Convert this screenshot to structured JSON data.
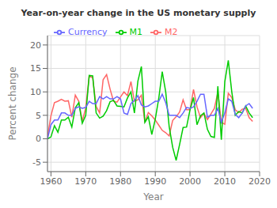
{
  "chart_data": {
    "type": "line",
    "title": "Year-on-year change in the US monetary supply",
    "xlabel": "Year",
    "ylabel": "Percent change",
    "x": [
      1959,
      1960,
      1961,
      1962,
      1963,
      1964,
      1965,
      1966,
      1967,
      1968,
      1969,
      1970,
      1971,
      1972,
      1973,
      1974,
      1975,
      1976,
      1977,
      1978,
      1979,
      1980,
      1981,
      1982,
      1983,
      1984,
      1985,
      1986,
      1987,
      1988,
      1989,
      1990,
      1991,
      1992,
      1993,
      1994,
      1995,
      1996,
      1997,
      1998,
      1999,
      2000,
      2001,
      2002,
      2003,
      2004,
      2005,
      2006,
      2007,
      2008,
      2009,
      2010,
      2011,
      2012,
      2013,
      2014,
      2015,
      2016,
      2017,
      2018
    ],
    "series": [
      {
        "name": "M2",
        "color": "#FF6666",
        "values": [
          0.5,
          4.9,
          7.7,
          8.0,
          8.4,
          8.0,
          8.1,
          4.6,
          9.3,
          8.0,
          3.7,
          6.6,
          13.4,
          13.0,
          6.9,
          5.5,
          12.6,
          13.7,
          10.6,
          8.0,
          7.8,
          8.9,
          10.0,
          9.2,
          12.2,
          8.0,
          8.3,
          9.3,
          3.5,
          5.6,
          4.9,
          4.0,
          2.9,
          1.8,
          1.3,
          0.6,
          3.9,
          4.7,
          5.7,
          8.3,
          6.2,
          6.2,
          10.5,
          6.8,
          4.5,
          5.4,
          4.1,
          5.3,
          6.5,
          9.9,
          3.5,
          3.1,
          9.7,
          8.8,
          6.2,
          5.6,
          6.3,
          6.5,
          4.5,
          3.7
        ]
      },
      {
        "name": "M1",
        "color": "#00CC00",
        "values": [
          0.0,
          0.4,
          2.8,
          1.4,
          4.0,
          4.0,
          4.6,
          2.5,
          6.6,
          7.7,
          3.3,
          5.0,
          13.5,
          13.4,
          5.5,
          4.4,
          4.8,
          6.0,
          7.9,
          8.2,
          7.0,
          6.9,
          6.8,
          8.7,
          10.0,
          5.5,
          12.3,
          15.4,
          3.5,
          4.7,
          0.9,
          4.2,
          8.6,
          14.3,
          10.0,
          2.6,
          -1.8,
          -4.6,
          -1.2,
          2.4,
          2.5,
          6.2,
          8.8,
          3.0,
          4.9,
          5.5,
          2.0,
          0.5,
          0.3,
          11.2,
          -0.2,
          12.2,
          16.7,
          10.0,
          5.0,
          5.8,
          5.5,
          7.0,
          5.5,
          4.5
        ]
      },
      {
        "name": "Currency",
        "color": "#6666FF",
        "values": [
          0.0,
          3.0,
          4.0,
          4.0,
          5.5,
          5.5,
          5.0,
          5.0,
          6.5,
          6.8,
          6.5,
          6.7,
          8.0,
          7.5,
          7.5,
          9.0,
          8.5,
          9.0,
          8.5,
          8.5,
          9.0,
          8.5,
          5.5,
          5.2,
          7.5,
          8.2,
          9.2,
          7.2,
          6.8,
          7.0,
          7.5,
          8.0,
          8.0,
          9.5,
          7.7,
          5.0,
          5.0,
          5.0,
          4.5,
          5.5,
          6.7,
          6.5,
          6.8,
          8.0,
          9.5,
          9.5,
          4.6,
          5.0,
          5.0,
          6.5,
          3.5,
          5.5,
          8.5,
          8.0,
          5.2,
          4.5,
          5.5,
          7.0,
          7.5,
          6.5
        ]
      }
    ],
    "xlim": [
      1959,
      2020
    ],
    "ylim": [
      -7,
      22
    ],
    "xticks": [
      1960,
      1970,
      1980,
      1990,
      2000,
      2010,
      2020
    ],
    "yticks": [
      -5,
      0,
      5,
      10,
      15,
      20
    ],
    "grid": true,
    "legend": "upper left"
  }
}
